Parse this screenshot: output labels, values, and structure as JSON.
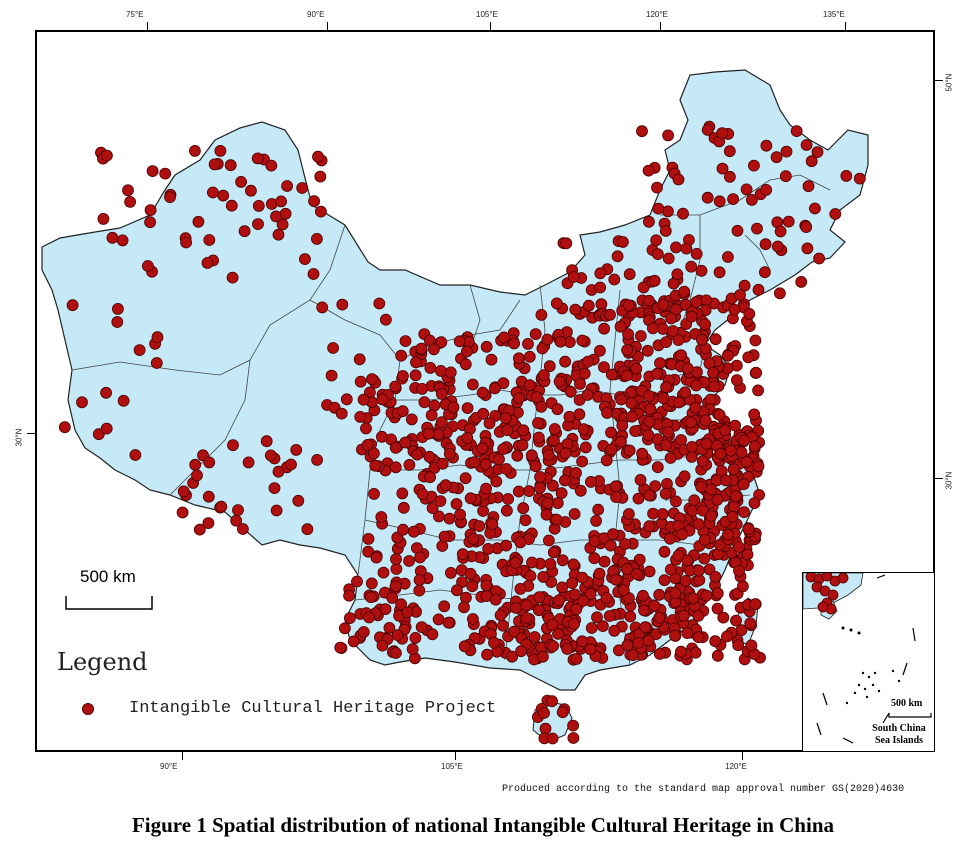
{
  "figure": {
    "caption": "Figure 1  Spatial distribution of national Intangible Cultural Heritage in China",
    "approval_note": "Produced according to the standard map approval number GS(2020)4630"
  },
  "graticule": {
    "top_lon": [
      "75°E",
      "90°E",
      "105°E",
      "120°E",
      "135°E"
    ],
    "bottom_lon": [
      "90°E",
      "105°E",
      "120°E"
    ],
    "left_lat": [
      "30°N"
    ],
    "right_lat": [
      "50°N",
      "30°N"
    ]
  },
  "scale_bar": {
    "label": "500 km"
  },
  "legend": {
    "title": "Legend",
    "item_label": "Intangible Cultural Heritage Project",
    "marker_color": "#b00f0f"
  },
  "inset": {
    "scale_label": "500 km",
    "name_line1": "South China",
    "name_line2": "Sea Islands"
  },
  "colors": {
    "land": "#c6e9f7",
    "border": "#333333",
    "point": "#b00f0f",
    "point_outline": "#4a0000"
  }
}
